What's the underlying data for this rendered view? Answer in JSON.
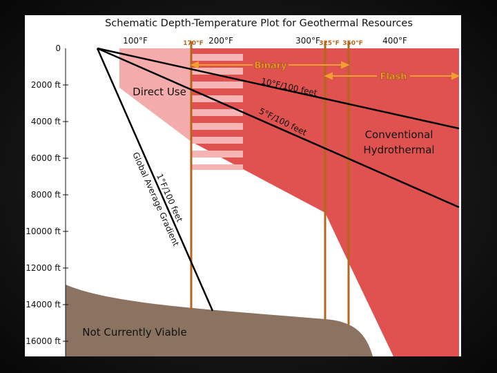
{
  "title": "Schematic Depth-Temperature Plot for Geothermal Resources",
  "temperature_labels": [
    "100°F",
    "200°F",
    "300°F",
    "400°F"
  ],
  "threshold_labels": [
    "170°F",
    "325°F",
    "350°F"
  ],
  "depth_labels": [
    "0",
    "2000 ft",
    "4000 ft",
    "6000 ft",
    "8000 ft",
    "10000 ft",
    "12000 ft",
    "14000 ft",
    "16000 ft"
  ],
  "regions": {
    "direct_use": "Direct Use",
    "conventional": [
      "Conventional",
      "Hydrothermal"
    ],
    "not_viable": "Not Currently Viable"
  },
  "ranges": {
    "binary": "Binary",
    "flash": "Flash"
  },
  "gradients": {
    "high": "10°F/100 feet",
    "mid": "5°F/100 feet",
    "low": "1°F/100 feet",
    "low_note": "Global Average Gradient"
  }
}
